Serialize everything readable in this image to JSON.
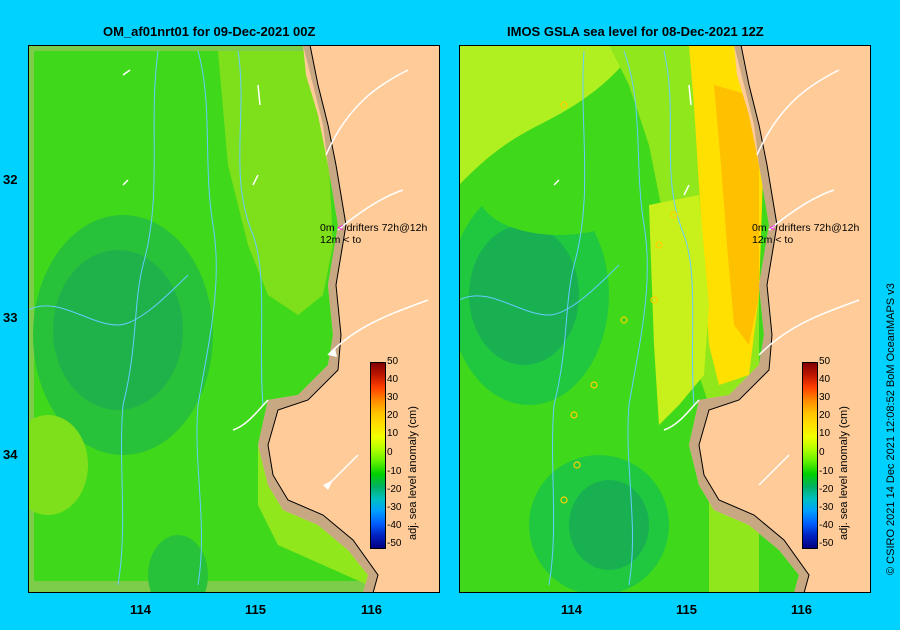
{
  "panels": [
    {
      "id": "left",
      "title": "OM_af01nrt01 for 09-Dec-2021 00Z"
    },
    {
      "id": "right",
      "title": "IMOS GSLA sea level  for 08-Dec-2021 12Z"
    }
  ],
  "axes": {
    "latitude_labels": [
      "32",
      "33",
      "34"
    ],
    "longitude_labels": [
      "114",
      "115",
      "116"
    ]
  },
  "colorbar": {
    "label": "adj. sea level anomaly (cm)",
    "ticks": [
      "50",
      "40",
      "30",
      "20",
      "10",
      "0",
      "-10",
      "-20",
      "-30",
      "-40",
      "-50"
    ],
    "colors": [
      "#800000",
      "#c01800",
      "#ff4000",
      "#ff8800",
      "#ffc000",
      "#ffe000",
      "#f0ff00",
      "#b0ff00",
      "#60f000",
      "#00d000",
      "#00b060",
      "#00c0c0",
      "#00a0ff",
      "#0060ff",
      "#0020c0",
      "#000080"
    ]
  },
  "legend": {
    "line1_depth": "0m",
    "line1_symbol": "<",
    "line1_text": "drifters 72h@12h",
    "line2_depth": "12m",
    "line2_symbol": "<",
    "line2_text": "to"
  },
  "credit": "© CSIRO 2021   14 Dec 2021 12:08:52 BoM OceanMAPS v3",
  "colors": {
    "background": "#00d2ff",
    "land": "#ffcc99",
    "coast_shelf": "#c8a882",
    "coastline": "#000000",
    "bathymetry": "#66ccff"
  }
}
